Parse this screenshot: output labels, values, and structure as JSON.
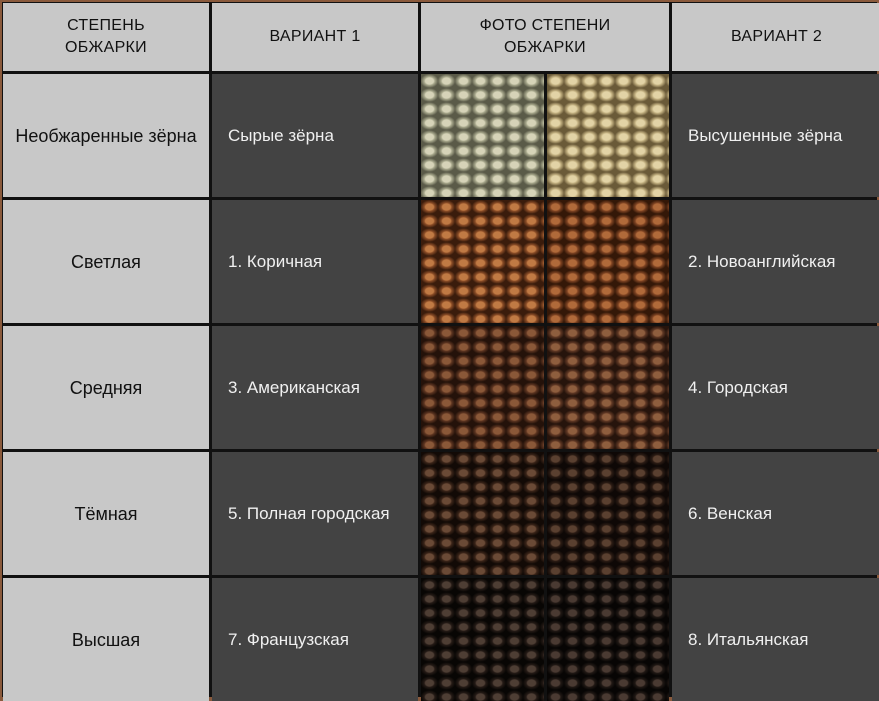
{
  "headers": [
    "СТЕПЕНЬ ОБЖАРКИ",
    "ВАРИАНТ 1",
    "ФОТО СТЕПЕНИ ОБЖАРКИ",
    "ВАРИАНТ 2"
  ],
  "rows": [
    {
      "level": "Необжаренные зёрна",
      "variant1": "Сырые зёрна",
      "variant2": "Высушенные зёрна",
      "photo_colors": [
        [
          "#a8a88c",
          "#d6d3b8",
          "#5a5a48"
        ],
        [
          "#c4b282",
          "#e2d3a6",
          "#6a5a38"
        ]
      ]
    },
    {
      "level": "Светлая",
      "variant1": "1. Коричная",
      "variant2": "2. Новоанглийская",
      "photo_colors": [
        [
          "#8a4c26",
          "#c07a44",
          "#3a1c0c"
        ],
        [
          "#7e4322",
          "#b06a3a",
          "#341808"
        ]
      ]
    },
    {
      "level": "Средняя",
      "variant1": "3. Американская",
      "variant2": "4. Городская",
      "photo_colors": [
        [
          "#5c3420",
          "#8a5838",
          "#24120a"
        ],
        [
          "#603824",
          "#8e5e3e",
          "#26140c"
        ]
      ]
    },
    {
      "level": "Тёмная",
      "variant1": "5. Полная городская",
      "variant2": "6. Венская",
      "photo_colors": [
        [
          "#3a2418",
          "#6a4a36",
          "#120a06"
        ],
        [
          "#2c1c14",
          "#5a4030",
          "#0e0806"
        ]
      ]
    },
    {
      "level": "Высшая",
      "variant1": "7. Французская",
      "variant2": "8. Итальянская",
      "photo_colors": [
        [
          "#241a15",
          "#4e3e34",
          "#080604"
        ],
        [
          "#201814",
          "#4a3a32",
          "#070504"
        ]
      ]
    }
  ]
}
